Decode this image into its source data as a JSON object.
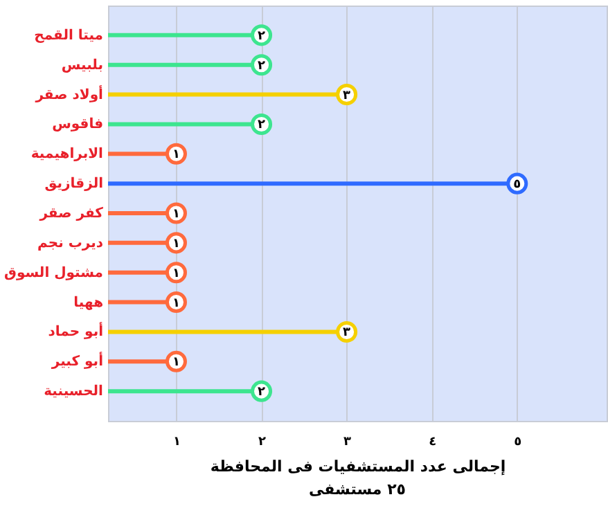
{
  "chart_data": {
    "type": "lollipop",
    "orientation": "horizontal",
    "categories": [
      "ميتا القمح",
      "بلبيس",
      "أولاد صقر",
      "فاقوس",
      "الابراهيمية",
      "الزقازيق",
      "كفر صقر",
      "ديرب نجم",
      "مشتول السوق",
      "ههيا",
      "أبو حماد",
      "أبو كبير",
      "الحسينية"
    ],
    "values": [
      2,
      2,
      3,
      2,
      1,
      5,
      1,
      1,
      1,
      1,
      3,
      1,
      2
    ],
    "value_labels": [
      "٢",
      "٢",
      "٣",
      "٢",
      "١",
      "٥",
      "١",
      "١",
      "١",
      "١",
      "٣",
      "١",
      "٢"
    ],
    "colors": [
      "#3de58f",
      "#3de58f",
      "#f5d000",
      "#3de58f",
      "#ff6a3d",
      "#2f6bff",
      "#ff6a3d",
      "#ff6a3d",
      "#ff6a3d",
      "#ff6a3d",
      "#f5d000",
      "#ff6a3d",
      "#3de58f"
    ],
    "xlim": [
      0.2,
      6.05
    ],
    "xticks": [
      {
        "value": 1,
        "label": "١"
      },
      {
        "value": 2,
        "label": "٢"
      },
      {
        "value": 3,
        "label": "٣"
      },
      {
        "value": 4,
        "label": "٤"
      },
      {
        "value": 5,
        "label": "٥"
      }
    ],
    "xlabel": "إجمالى عدد المستشفيات فى المحافظة",
    "annotations": [
      "٢٥ مستشفى"
    ],
    "grid": "x",
    "marker": "circle"
  }
}
